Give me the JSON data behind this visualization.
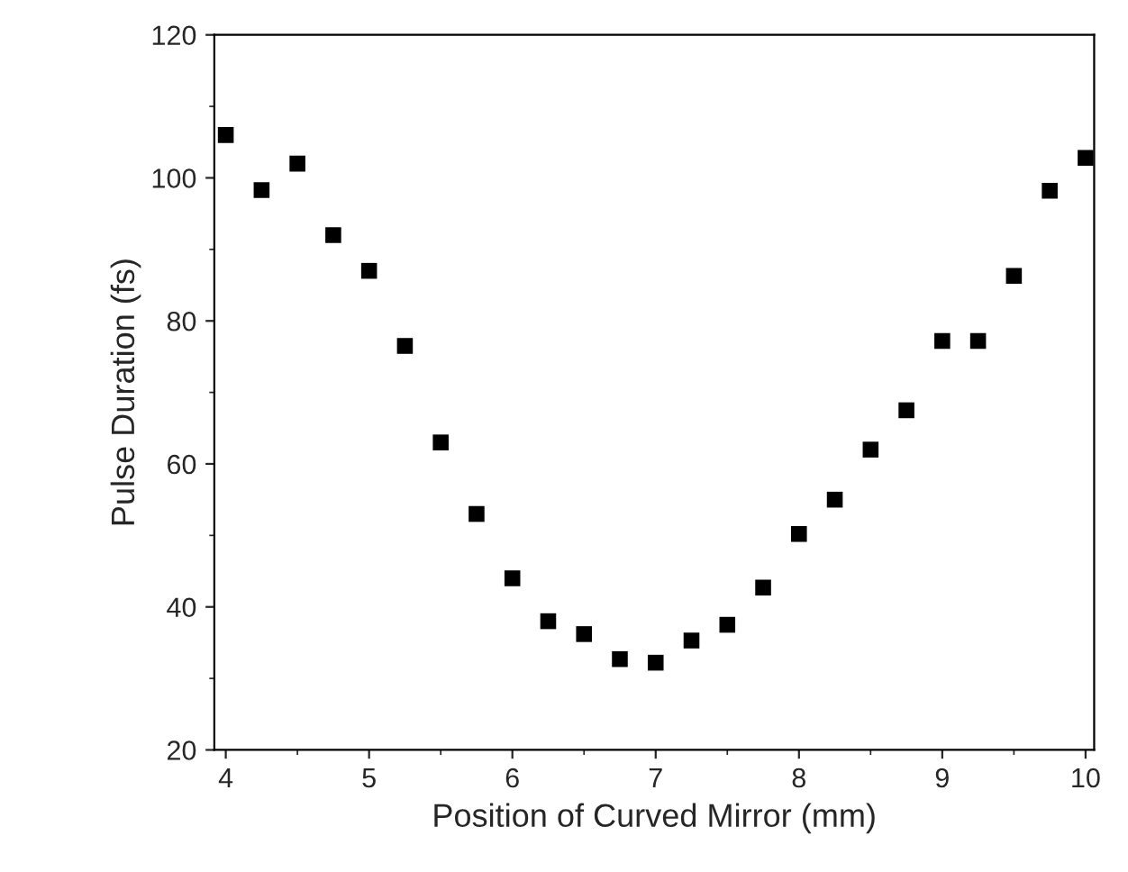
{
  "chart_data": {
    "type": "scatter",
    "xlabel": "Position of Curved Mirror (mm)",
    "ylabel": "Pulse Duration (fs)",
    "x": [
      4,
      4.25,
      4.5,
      4.75,
      5,
      5.25,
      5.5,
      5.75,
      6,
      6.25,
      6.5,
      6.75,
      7,
      7.25,
      7.5,
      7.75,
      8,
      8.25,
      8.5,
      8.75,
      9,
      9.25,
      9.5,
      9.75,
      10
    ],
    "series": [
      {
        "color": "#000000",
        "values": [
          106,
          98.3,
          102,
          92,
          87,
          76.5,
          63,
          53,
          44,
          38,
          36.2,
          32.7,
          32.2,
          35.3,
          37.5,
          42.7,
          50.2,
          55,
          62,
          67.5,
          77.2,
          77.2,
          86.3,
          98.2,
          102.8
        ]
      }
    ],
    "xlim": [
      3.92,
      10.06
    ],
    "ylim": [
      20,
      120
    ],
    "xticks": [
      4,
      5,
      6,
      7,
      8,
      9,
      10
    ],
    "yticks": [
      20,
      40,
      60,
      80,
      100,
      120
    ],
    "marker": "square",
    "grid": false
  }
}
